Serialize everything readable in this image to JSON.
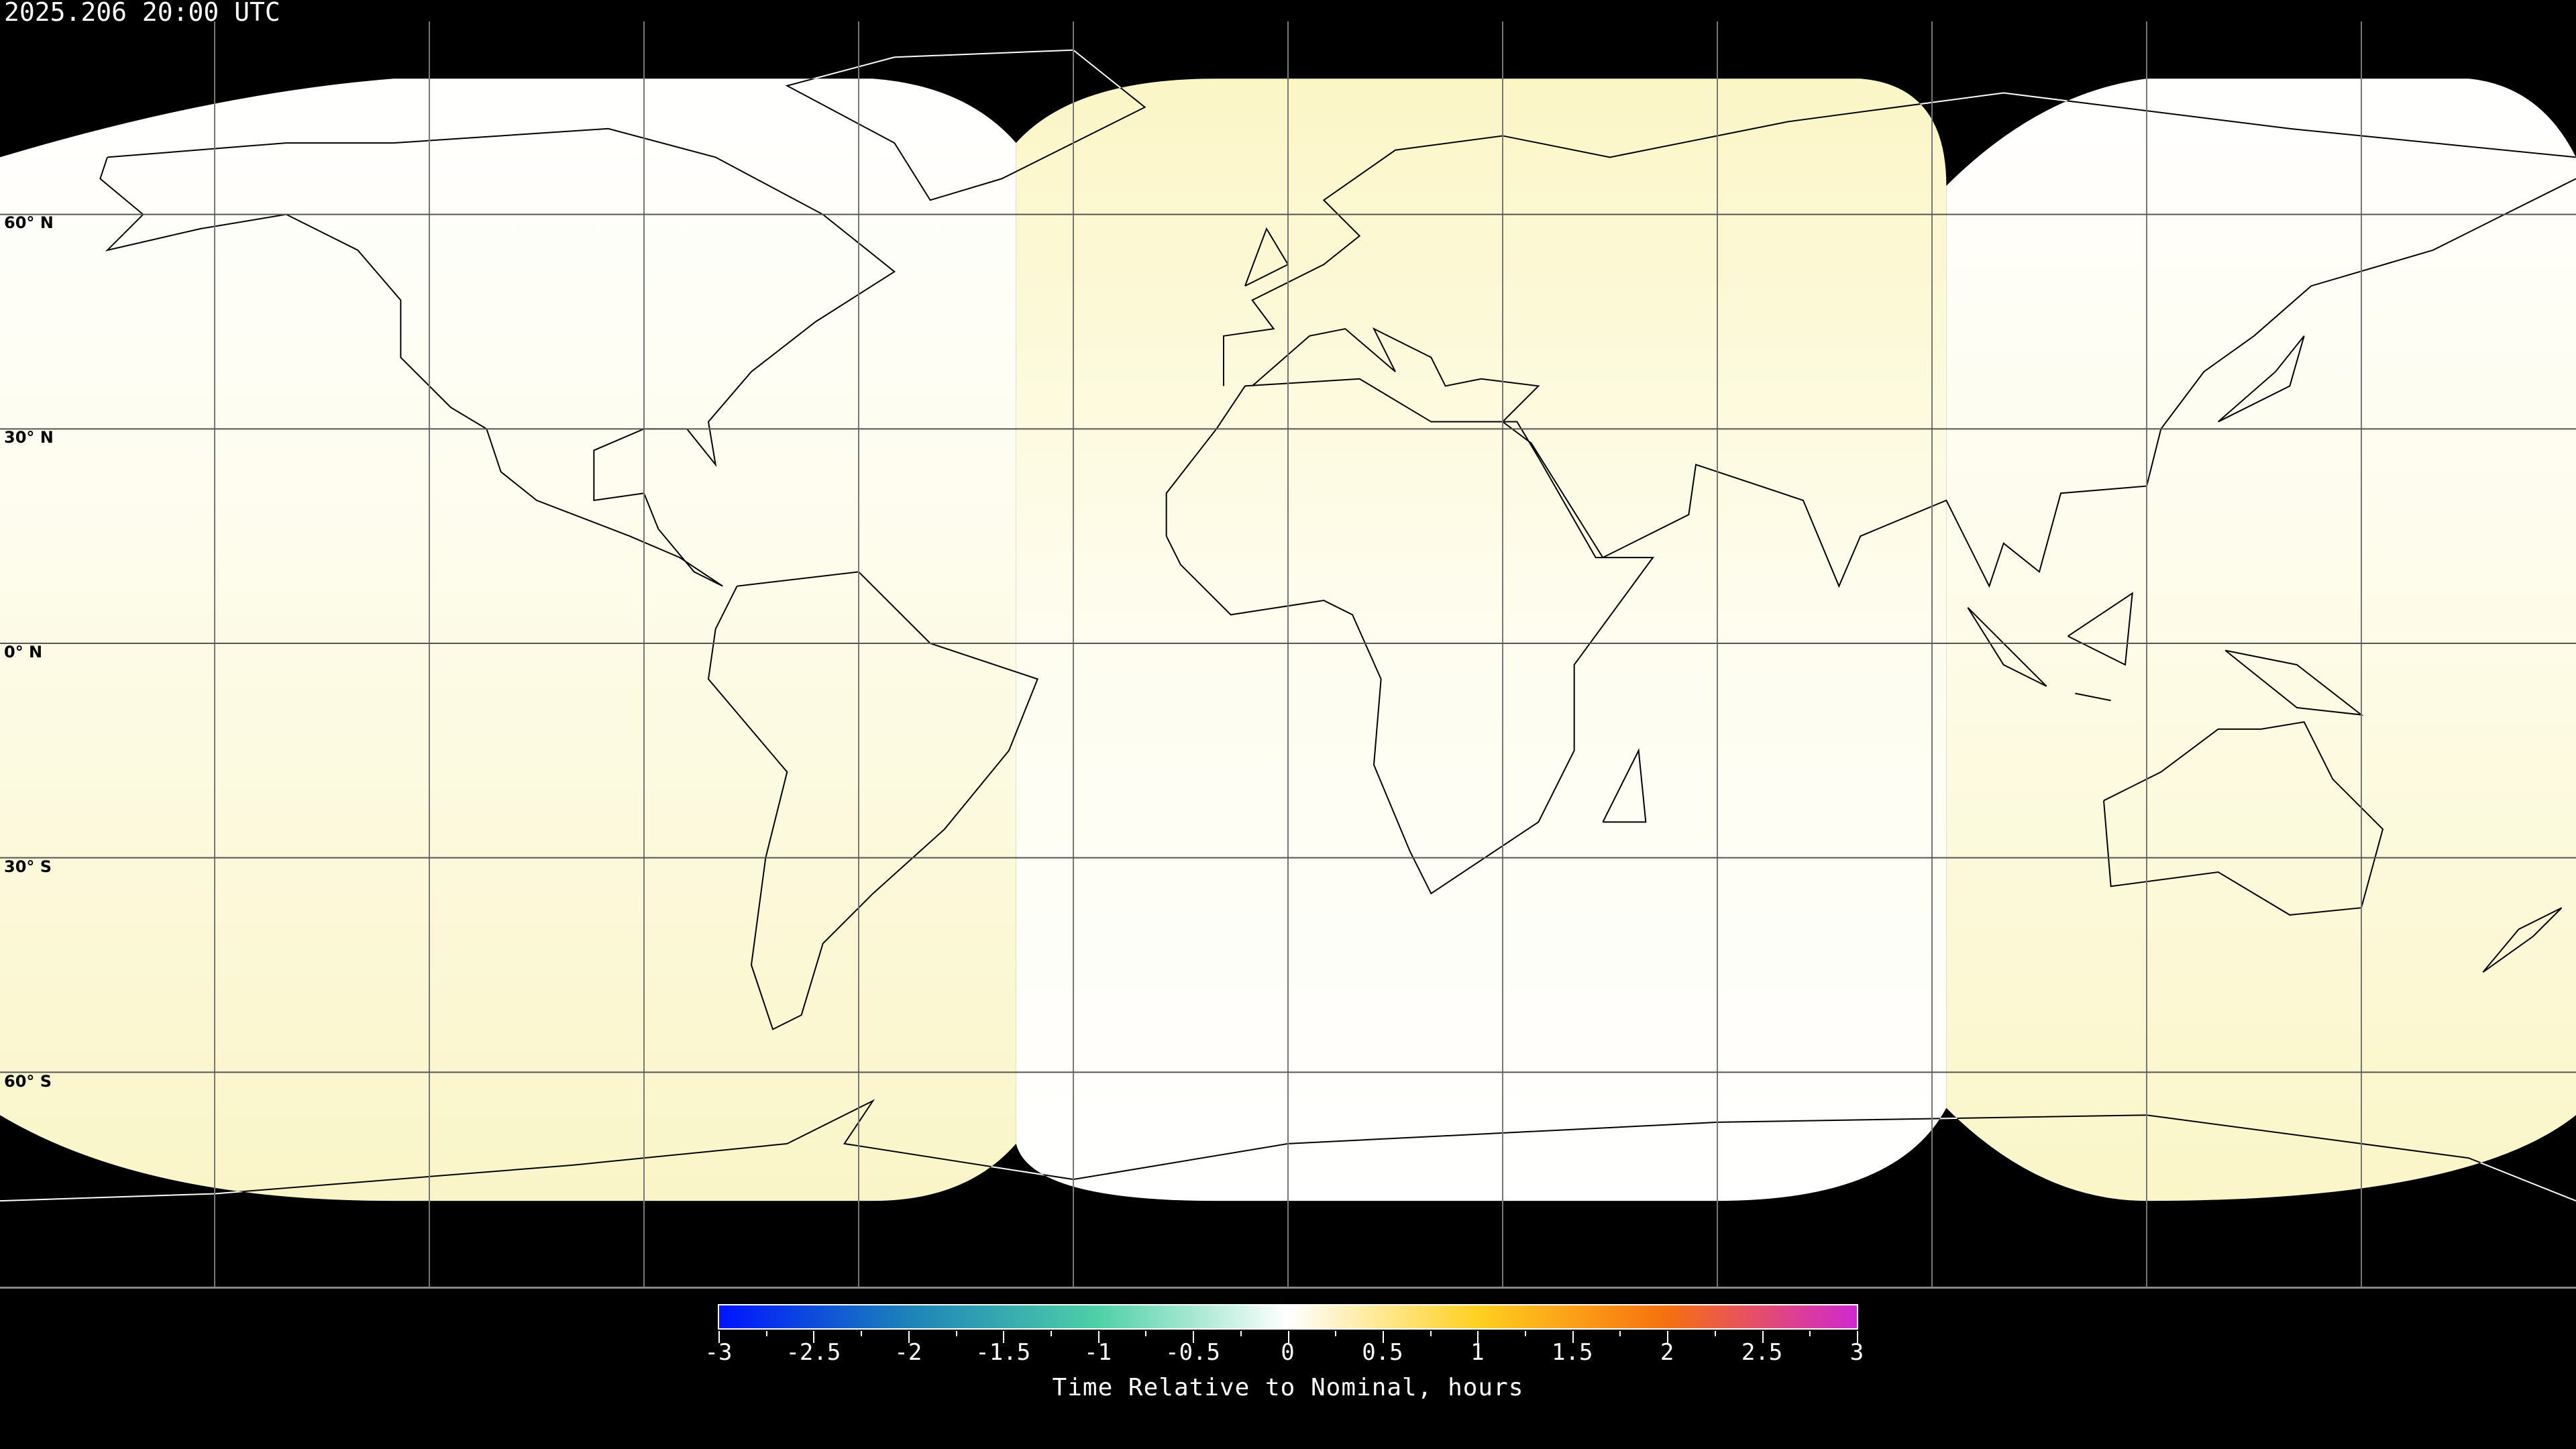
{
  "timestamp": "2025.206 20:00 UTC",
  "lat_labels": [
    "60° N",
    "30° N",
    "0° N",
    "30° S",
    "60° S"
  ],
  "colorbar": {
    "title": "Time Relative to Nominal, hours",
    "range": [
      -3,
      3
    ],
    "ticks": [
      "-3",
      "-2.5",
      "-2",
      "-1.5",
      "-1",
      "-0.5",
      "0",
      "0.5",
      "1",
      "1.5",
      "2",
      "2.5",
      "3"
    ],
    "colors": [
      "#0014ff",
      "#1d83b8",
      "#4fd0a6",
      "#ffffff",
      "#ffd020",
      "#f57010",
      "#d028d0"
    ]
  },
  "swath_colors": {
    "pale_yellow": "#fbf7cc",
    "white": "#ffffff",
    "no_data": "#000000"
  }
}
